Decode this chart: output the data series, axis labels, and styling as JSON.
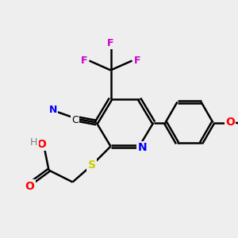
{
  "bg_color": "#eeeeee",
  "atom_colors": {
    "C": "#000000",
    "N": "#0000ff",
    "O": "#ff0000",
    "S": "#cccc00",
    "F": "#cc00cc",
    "H": "#808080"
  },
  "bond_color": "#000000",
  "bond_width": 1.8
}
